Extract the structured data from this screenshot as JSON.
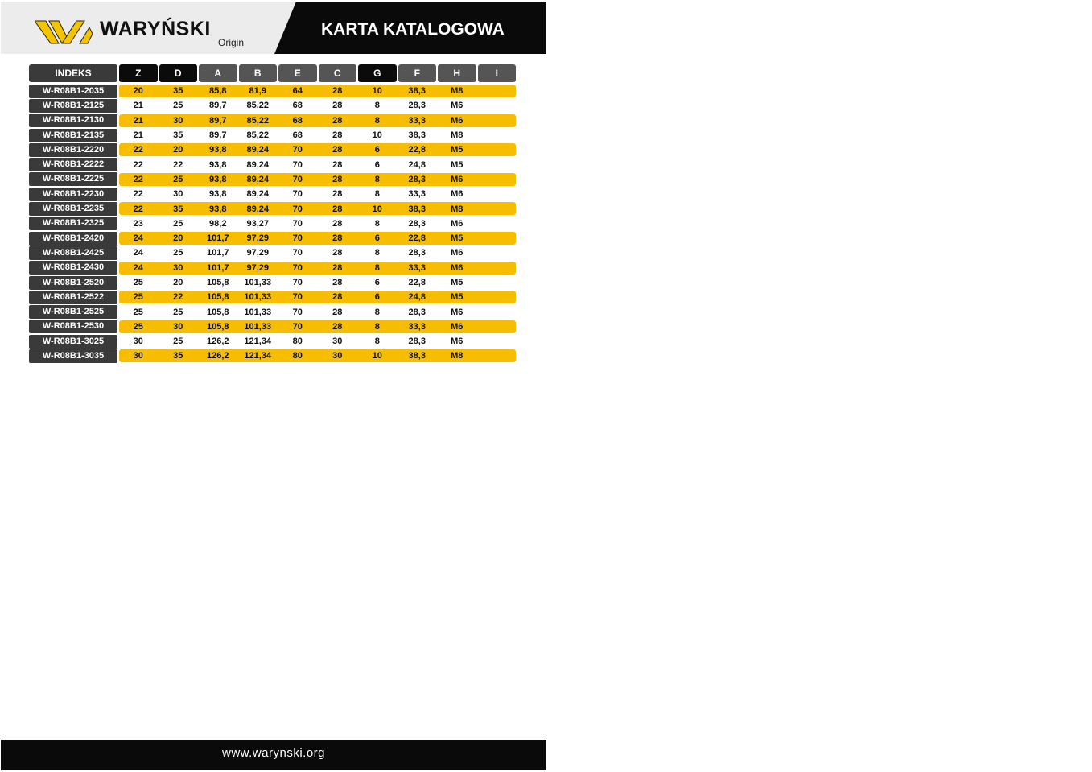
{
  "header": {
    "brand": "WARYŃSKI",
    "sub": "Origin",
    "title": "KARTA KATALOGOWA"
  },
  "colors": {
    "accent": "#f7bd00",
    "dark": "#0a0a0a",
    "gray": "#555555"
  },
  "table": {
    "columns": [
      "INDEKS",
      "Z",
      "D",
      "A",
      "B",
      "E",
      "C",
      "G",
      "F",
      "H",
      "I"
    ],
    "rows": [
      [
        "W-R08B1-2035",
        "20",
        "35",
        "85,8",
        "81,9",
        "64",
        "28",
        "10",
        "38,3",
        "M8",
        ""
      ],
      [
        "W-R08B1-2125",
        "21",
        "25",
        "89,7",
        "85,22",
        "68",
        "28",
        "8",
        "28,3",
        "M6",
        ""
      ],
      [
        "W-R08B1-2130",
        "21",
        "30",
        "89,7",
        "85,22",
        "68",
        "28",
        "8",
        "33,3",
        "M6",
        ""
      ],
      [
        "W-R08B1-2135",
        "21",
        "35",
        "89,7",
        "85,22",
        "68",
        "28",
        "10",
        "38,3",
        "M8",
        ""
      ],
      [
        "W-R08B1-2220",
        "22",
        "20",
        "93,8",
        "89,24",
        "70",
        "28",
        "6",
        "22,8",
        "M5",
        ""
      ],
      [
        "W-R08B1-2222",
        "22",
        "22",
        "93,8",
        "89,24",
        "70",
        "28",
        "6",
        "24,8",
        "M5",
        ""
      ],
      [
        "W-R08B1-2225",
        "22",
        "25",
        "93,8",
        "89,24",
        "70",
        "28",
        "8",
        "28,3",
        "M6",
        ""
      ],
      [
        "W-R08B1-2230",
        "22",
        "30",
        "93,8",
        "89,24",
        "70",
        "28",
        "8",
        "33,3",
        "M6",
        ""
      ],
      [
        "W-R08B1-2235",
        "22",
        "35",
        "93,8",
        "89,24",
        "70",
        "28",
        "10",
        "38,3",
        "M8",
        ""
      ],
      [
        "W-R08B1-2325",
        "23",
        "25",
        "98,2",
        "93,27",
        "70",
        "28",
        "8",
        "28,3",
        "M6",
        ""
      ],
      [
        "W-R08B1-2420",
        "24",
        "20",
        "101,7",
        "97,29",
        "70",
        "28",
        "6",
        "22,8",
        "M5",
        ""
      ],
      [
        "W-R08B1-2425",
        "24",
        "25",
        "101,7",
        "97,29",
        "70",
        "28",
        "8",
        "28,3",
        "M6",
        ""
      ],
      [
        "W-R08B1-2430",
        "24",
        "30",
        "101,7",
        "97,29",
        "70",
        "28",
        "8",
        "33,3",
        "M6",
        ""
      ],
      [
        "W-R08B1-2520",
        "25",
        "20",
        "105,8",
        "101,33",
        "70",
        "28",
        "6",
        "22,8",
        "M5",
        ""
      ],
      [
        "W-R08B1-2522",
        "25",
        "22",
        "105,8",
        "101,33",
        "70",
        "28",
        "6",
        "24,8",
        "M5",
        ""
      ],
      [
        "W-R08B1-2525",
        "25",
        "25",
        "105,8",
        "101,33",
        "70",
        "28",
        "8",
        "28,3",
        "M6",
        ""
      ],
      [
        "W-R08B1-2530",
        "25",
        "30",
        "105,8",
        "101,33",
        "70",
        "28",
        "8",
        "33,3",
        "M6",
        ""
      ],
      [
        "W-R08B1-3025",
        "30",
        "25",
        "126,2",
        "121,34",
        "80",
        "30",
        "8",
        "28,3",
        "M6",
        ""
      ],
      [
        "W-R08B1-3035",
        "30",
        "35",
        "126,2",
        "121,34",
        "80",
        "30",
        "10",
        "38,3",
        "M8",
        ""
      ]
    ]
  },
  "footer": {
    "url": "www.warynski.org"
  }
}
